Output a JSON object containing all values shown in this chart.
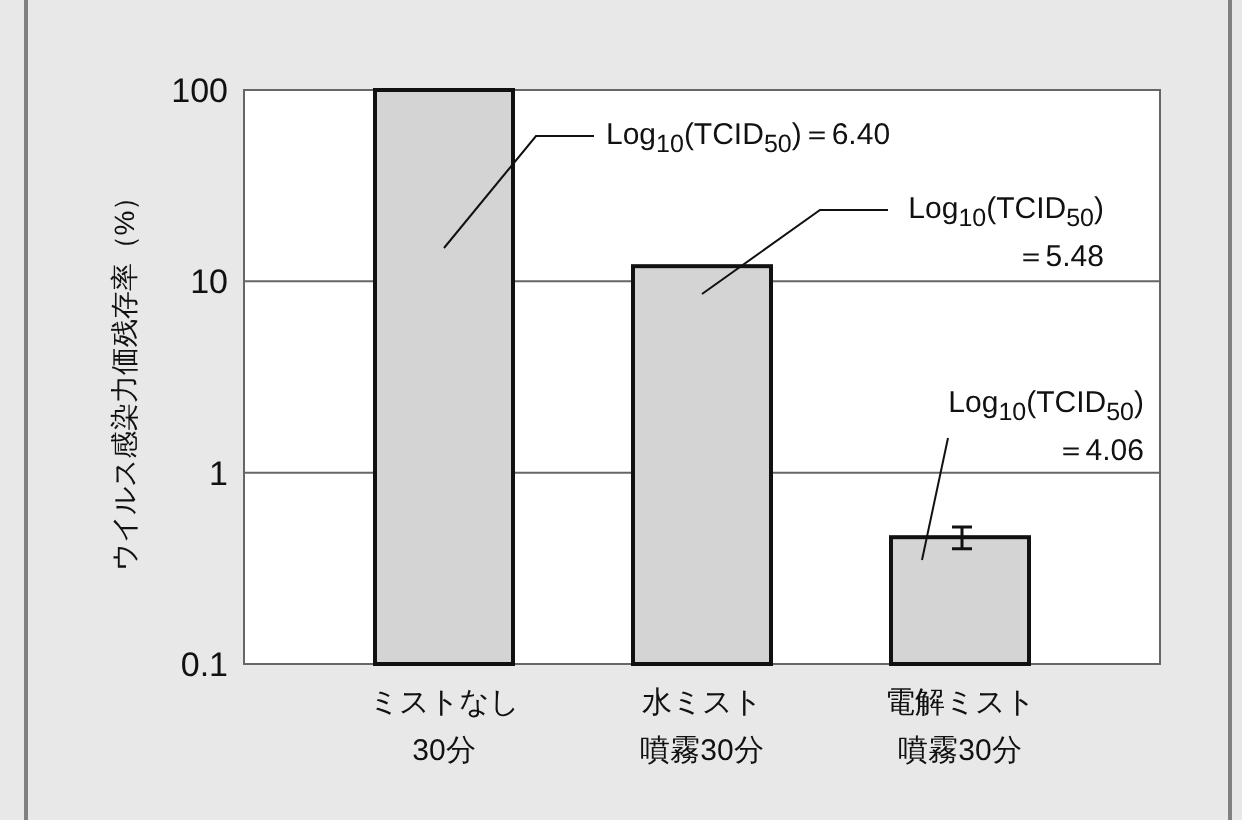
{
  "chart_data": {
    "type": "bar",
    "ylabel": "ウイルス感染力価残存率（%）",
    "categories": [
      "ミストなし30分",
      "水ミスト噴霧30分",
      "電解ミスト噴霧30分"
    ],
    "values": [
      100,
      12,
      0.46
    ],
    "color": "#d4d4d4",
    "errors": [
      null,
      null,
      [
        0.4,
        0.52
      ]
    ],
    "log": true,
    "ylim": [
      0.1,
      100
    ],
    "yticks": [
      0.1,
      1,
      10,
      100
    ],
    "grid": "y",
    "annotations": [
      "Log$_{10}$(TCID$_{50}$)＝6.40",
      "Log$_{10}$(TCID$_{50}$)＝5.48",
      "Log$_{10}$(TCID$_{50}$)＝4.06"
    ]
  }
}
